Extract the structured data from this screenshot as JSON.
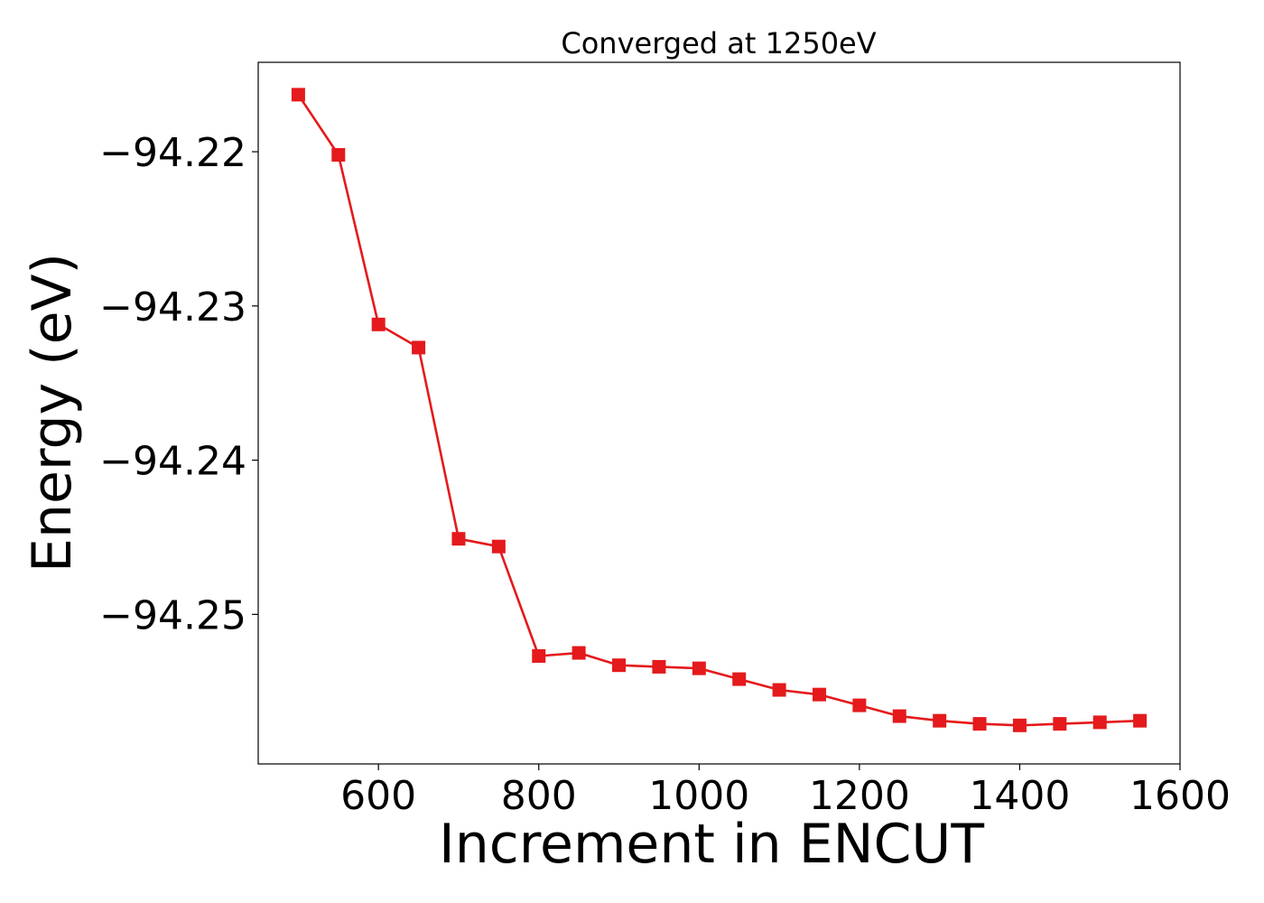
{
  "chart_data": {
    "type": "line",
    "title": "Converged at 1250eV",
    "xlabel": "Increment in ENCUT",
    "ylabel": "Energy (eV)",
    "xlim": [
      450,
      1600
    ],
    "ylim": [
      -94.2597,
      -94.2142
    ],
    "xticks": [
      600,
      800,
      1000,
      1200,
      1400,
      1600
    ],
    "xtick_labels": [
      "600",
      "800",
      "1000",
      "1200",
      "1400",
      "1600"
    ],
    "yticks": [
      -94.22,
      -94.23,
      -94.24,
      -94.25
    ],
    "ytick_labels": [
      "−94.22",
      "−94.23",
      "−94.24",
      "−94.25"
    ],
    "grid": false,
    "series": [
      {
        "color": "#e41a1c",
        "marker": "square",
        "x": [
          500,
          550,
          600,
          650,
          700,
          750,
          800,
          850,
          900,
          950,
          1000,
          1050,
          1100,
          1150,
          1200,
          1250,
          1300,
          1350,
          1400,
          1450,
          1500,
          1550
        ],
        "y": [
          -94.2163,
          -94.2202,
          -94.2312,
          -94.2327,
          -94.2451,
          -94.2456,
          -94.2527,
          -94.2525,
          -94.2533,
          -94.2534,
          -94.2535,
          -94.2542,
          -94.2549,
          -94.2552,
          -94.2559,
          -94.2566,
          -94.2569,
          -94.2571,
          -94.2572,
          -94.2571,
          -94.257,
          -94.2569
        ]
      }
    ]
  }
}
